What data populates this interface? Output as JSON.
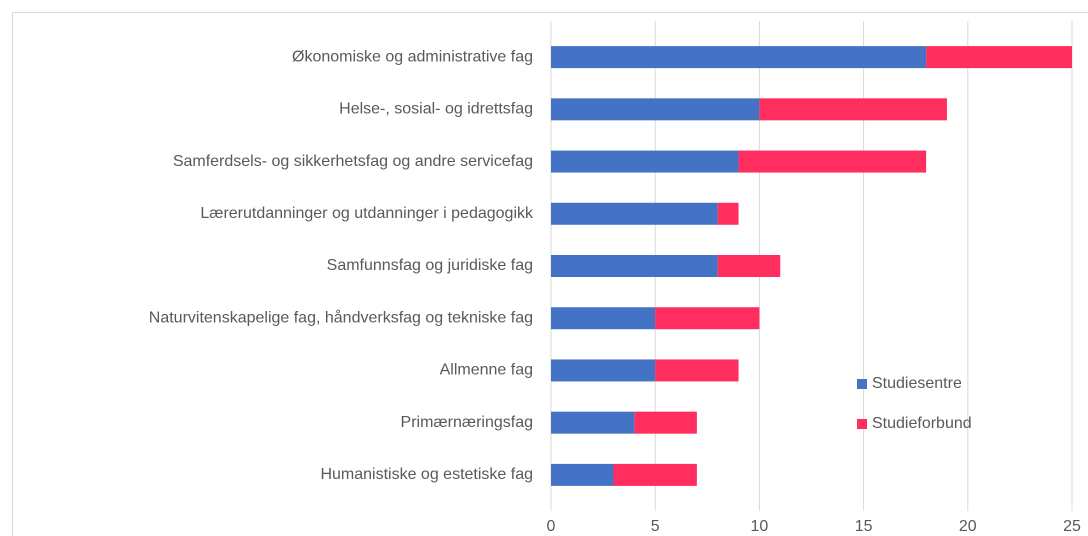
{
  "chart_data": {
    "type": "bar",
    "orientation": "horizontal",
    "stacked": true,
    "categories": [
      "Økonomiske og administrative fag",
      "Helse-, sosial- og idrettsfag",
      "Samferdsels- og sikkerhetsfag og andre servicefag",
      "Lærerutdanninger og utdanninger i pedagogikk",
      "Samfunnsfag og juridiske fag",
      "Naturvitenskapelige fag, håndverksfag og tekniske fag",
      "Allmenne fag",
      "Primærnæringsfag",
      "Humanistiske og estetiske fag"
    ],
    "series": [
      {
        "name": "Studiesentre",
        "color": "#4472c4",
        "values": [
          18,
          10,
          9,
          8,
          8,
          5,
          5,
          4,
          3
        ]
      },
      {
        "name": "Studieforbund",
        "color": "#ff2e5f",
        "values": [
          7,
          9,
          9,
          1,
          3,
          5,
          4,
          3,
          4
        ]
      }
    ],
    "xlim": [
      0,
      25
    ],
    "xticks": [
      0,
      5,
      10,
      15,
      20,
      25
    ],
    "grid": true,
    "legend": "lower right"
  }
}
